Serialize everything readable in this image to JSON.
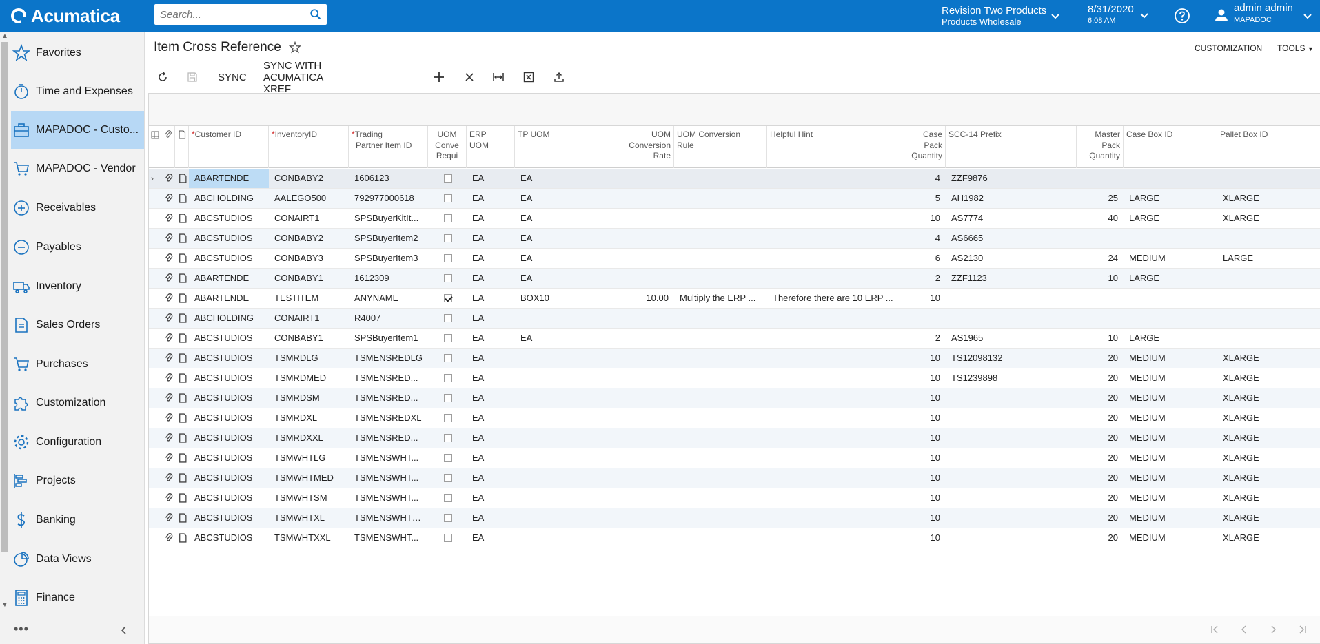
{
  "app": {
    "logo_text": "Acumatica",
    "search_placeholder": "Search...",
    "company_line1": "Revision Two Products",
    "company_line2": "Products Wholesale",
    "date": "8/31/2020",
    "time": "6:08 AM",
    "user_name": "admin admin",
    "user_company": "MAPADOC",
    "accent_color": "#0b75c9"
  },
  "sidebar": {
    "items": [
      {
        "label": "Favorites",
        "icon": "star-icon"
      },
      {
        "label": "Time and Expenses",
        "icon": "stopwatch-icon"
      },
      {
        "label": "MAPADOC - Custo...",
        "icon": "briefcase-icon"
      },
      {
        "label": "MAPADOC - Vendor",
        "icon": "cart-icon"
      },
      {
        "label": "Receivables",
        "icon": "plus-circle-icon"
      },
      {
        "label": "Payables",
        "icon": "minus-circle-icon"
      },
      {
        "label": "Inventory",
        "icon": "truck-icon"
      },
      {
        "label": "Sales Orders",
        "icon": "document-icon"
      },
      {
        "label": "Purchases",
        "icon": "cart-icon"
      },
      {
        "label": "Customization",
        "icon": "puzzle-icon"
      },
      {
        "label": "Configuration",
        "icon": "gear-icon"
      },
      {
        "label": "Projects",
        "icon": "projects-icon"
      },
      {
        "label": "Banking",
        "icon": "dollar-icon"
      },
      {
        "label": "Data Views",
        "icon": "pie-chart-icon"
      },
      {
        "label": "Finance",
        "icon": "calculator-icon"
      }
    ],
    "more_label": "•••"
  },
  "page": {
    "title": "Item Cross Reference",
    "customization_label": "CUSTOMIZATION",
    "tools_label": "TOOLS",
    "sync_label": "SYNC",
    "sync_xref_label": "SYNC WITH ACUMATICA XREF"
  },
  "grid": {
    "headers": {
      "customer_id": "Customer ID",
      "inventory_id": "InventoryID",
      "trading_partner_1": "Trading",
      "trading_partner_2": "Partner Item ID",
      "uom_conv_1": "UOM",
      "uom_conv_2": "Conve",
      "uom_conv_3": "Requi",
      "erp_uom_1": "ERP",
      "erp_uom_2": "UOM",
      "tp_uom": "TP UOM",
      "rate_1": "UOM",
      "rate_2": "Conversion",
      "rate_3": "Rate",
      "rule_1": "UOM Conversion",
      "rule_2": "Rule",
      "hint": "Helpful Hint",
      "case_1": "Case",
      "case_2": "Pack",
      "case_3": "Quantity",
      "scc": "SCC-14 Prefix",
      "master_1": "Master",
      "master_2": "Pack",
      "master_3": "Quantity",
      "case_box": "Case Box ID",
      "pallet_box": "Pallet Box ID"
    },
    "rows": [
      {
        "customer": "ABARTENDE",
        "inventory": "CONBABY2",
        "tp_item": "1606123",
        "conv": false,
        "erp_uom": "EA",
        "tp_uom": "EA",
        "rate": "",
        "rule": "",
        "hint": "",
        "case_qty": "4",
        "scc": "ZZF9876",
        "master_qty": "",
        "case_box": "",
        "pallet_box": ""
      },
      {
        "customer": "ABCHOLDING",
        "inventory": "AALEGO500",
        "tp_item": "792977000618",
        "conv": false,
        "erp_uom": "EA",
        "tp_uom": "EA",
        "rate": "",
        "rule": "",
        "hint": "",
        "case_qty": "5",
        "scc": "AH1982",
        "master_qty": "25",
        "case_box": "LARGE",
        "pallet_box": "XLARGE"
      },
      {
        "customer": "ABCSTUDIOS",
        "inventory": "CONAIRT1",
        "tp_item": "SPSBuyerKitIt...",
        "conv": false,
        "erp_uom": "EA",
        "tp_uom": "EA",
        "rate": "",
        "rule": "",
        "hint": "",
        "case_qty": "10",
        "scc": "AS7774",
        "master_qty": "40",
        "case_box": "LARGE",
        "pallet_box": "XLARGE"
      },
      {
        "customer": "ABCSTUDIOS",
        "inventory": "CONBABY2",
        "tp_item": "SPSBuyerItem2",
        "conv": false,
        "erp_uom": "EA",
        "tp_uom": "EA",
        "rate": "",
        "rule": "",
        "hint": "",
        "case_qty": "4",
        "scc": "AS6665",
        "master_qty": "",
        "case_box": "",
        "pallet_box": ""
      },
      {
        "customer": "ABCSTUDIOS",
        "inventory": "CONBABY3",
        "tp_item": "SPSBuyerItem3",
        "conv": false,
        "erp_uom": "EA",
        "tp_uom": "EA",
        "rate": "",
        "rule": "",
        "hint": "",
        "case_qty": "6",
        "scc": "AS2130",
        "master_qty": "24",
        "case_box": "MEDIUM",
        "pallet_box": "LARGE"
      },
      {
        "customer": "ABARTENDE",
        "inventory": "CONBABY1",
        "tp_item": "1612309",
        "conv": false,
        "erp_uom": "EA",
        "tp_uom": "EA",
        "rate": "",
        "rule": "",
        "hint": "",
        "case_qty": "2",
        "scc": "ZZF1123",
        "master_qty": "10",
        "case_box": "LARGE",
        "pallet_box": ""
      },
      {
        "customer": "ABARTENDE",
        "inventory": "TESTITEM",
        "tp_item": "ANYNAME",
        "conv": true,
        "erp_uom": "EA",
        "tp_uom": "BOX10",
        "rate": "10.00",
        "rule": "Multiply the ERP ...",
        "hint": "Therefore there are 10 ERP ...",
        "case_qty": "10",
        "scc": "",
        "master_qty": "",
        "case_box": "",
        "pallet_box": ""
      },
      {
        "customer": "ABCHOLDING",
        "inventory": "CONAIRT1",
        "tp_item": "R4007",
        "conv": false,
        "erp_uom": "EA",
        "tp_uom": "",
        "rate": "",
        "rule": "",
        "hint": "",
        "case_qty": "",
        "scc": "",
        "master_qty": "",
        "case_box": "",
        "pallet_box": ""
      },
      {
        "customer": "ABCSTUDIOS",
        "inventory": "CONBABY1",
        "tp_item": "SPSBuyerItem1",
        "conv": false,
        "erp_uom": "EA",
        "tp_uom": "EA",
        "rate": "",
        "rule": "",
        "hint": "",
        "case_qty": "2",
        "scc": "AS1965",
        "master_qty": "10",
        "case_box": "LARGE",
        "pallet_box": ""
      },
      {
        "customer": "ABCSTUDIOS",
        "inventory": "TSMRDLG",
        "tp_item": "TSMENSREDLG",
        "conv": false,
        "erp_uom": "EA",
        "tp_uom": "",
        "rate": "",
        "rule": "",
        "hint": "",
        "case_qty": "10",
        "scc": "TS12098132",
        "master_qty": "20",
        "case_box": "MEDIUM",
        "pallet_box": "XLARGE"
      },
      {
        "customer": "ABCSTUDIOS",
        "inventory": "TSMRDMED",
        "tp_item": "TSMENSRED...",
        "conv": false,
        "erp_uom": "EA",
        "tp_uom": "",
        "rate": "",
        "rule": "",
        "hint": "",
        "case_qty": "10",
        "scc": "TS1239898",
        "master_qty": "20",
        "case_box": "MEDIUM",
        "pallet_box": "XLARGE"
      },
      {
        "customer": "ABCSTUDIOS",
        "inventory": "TSMRDSM",
        "tp_item": "TSMENSRED...",
        "conv": false,
        "erp_uom": "EA",
        "tp_uom": "",
        "rate": "",
        "rule": "",
        "hint": "",
        "case_qty": "10",
        "scc": "",
        "master_qty": "20",
        "case_box": "MEDIUM",
        "pallet_box": "XLARGE"
      },
      {
        "customer": "ABCSTUDIOS",
        "inventory": "TSMRDXL",
        "tp_item": "TSMENSREDXL",
        "conv": false,
        "erp_uom": "EA",
        "tp_uom": "",
        "rate": "",
        "rule": "",
        "hint": "",
        "case_qty": "10",
        "scc": "",
        "master_qty": "20",
        "case_box": "MEDIUM",
        "pallet_box": "XLARGE"
      },
      {
        "customer": "ABCSTUDIOS",
        "inventory": "TSMRDXXL",
        "tp_item": "TSMENSRED...",
        "conv": false,
        "erp_uom": "EA",
        "tp_uom": "",
        "rate": "",
        "rule": "",
        "hint": "",
        "case_qty": "10",
        "scc": "",
        "master_qty": "20",
        "case_box": "MEDIUM",
        "pallet_box": "XLARGE"
      },
      {
        "customer": "ABCSTUDIOS",
        "inventory": "TSMWHTLG",
        "tp_item": "TSMENSWHT...",
        "conv": false,
        "erp_uom": "EA",
        "tp_uom": "",
        "rate": "",
        "rule": "",
        "hint": "",
        "case_qty": "10",
        "scc": "",
        "master_qty": "20",
        "case_box": "MEDIUM",
        "pallet_box": "XLARGE"
      },
      {
        "customer": "ABCSTUDIOS",
        "inventory": "TSMWHTMED",
        "tp_item": "TSMENSWHT...",
        "conv": false,
        "erp_uom": "EA",
        "tp_uom": "",
        "rate": "",
        "rule": "",
        "hint": "",
        "case_qty": "10",
        "scc": "",
        "master_qty": "20",
        "case_box": "MEDIUM",
        "pallet_box": "XLARGE"
      },
      {
        "customer": "ABCSTUDIOS",
        "inventory": "TSMWHTSM",
        "tp_item": "TSMENSWHT...",
        "conv": false,
        "erp_uom": "EA",
        "tp_uom": "",
        "rate": "",
        "rule": "",
        "hint": "",
        "case_qty": "10",
        "scc": "",
        "master_qty": "20",
        "case_box": "MEDIUM",
        "pallet_box": "XLARGE"
      },
      {
        "customer": "ABCSTUDIOS",
        "inventory": "TSMWHTXL",
        "tp_item": "TSMENSWHTXL",
        "conv": false,
        "erp_uom": "EA",
        "tp_uom": "",
        "rate": "",
        "rule": "",
        "hint": "",
        "case_qty": "10",
        "scc": "",
        "master_qty": "20",
        "case_box": "MEDIUM",
        "pallet_box": "XLARGE"
      },
      {
        "customer": "ABCSTUDIOS",
        "inventory": "TSMWHTXXL",
        "tp_item": "TSMENSWHT...",
        "conv": false,
        "erp_uom": "EA",
        "tp_uom": "",
        "rate": "",
        "rule": "",
        "hint": "",
        "case_qty": "10",
        "scc": "",
        "master_qty": "20",
        "case_box": "MEDIUM",
        "pallet_box": "XLARGE"
      }
    ]
  }
}
